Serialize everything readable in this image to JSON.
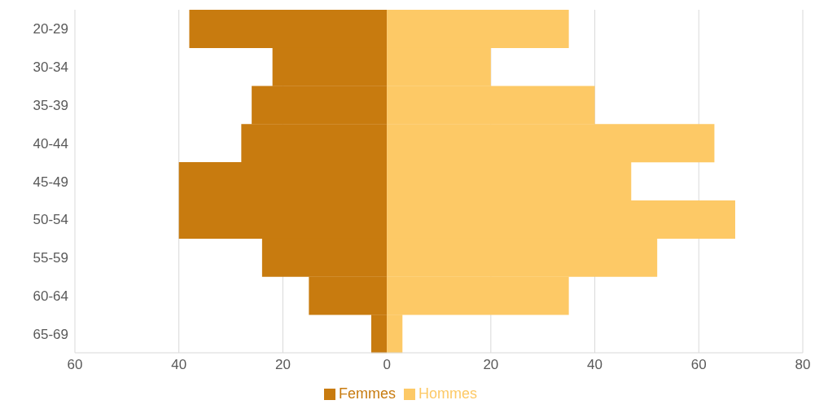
{
  "chart_data": {
    "type": "bar",
    "orientation": "horizontal",
    "stacked": true,
    "categories": [
      "20-29",
      "30-34",
      "35-39",
      "40-44",
      "45-49",
      "50-54",
      "55-59",
      "60-64",
      "65-69"
    ],
    "series": [
      {
        "name": "Femmes",
        "color": "#c87b0f",
        "values": [
          -38,
          -22,
          -26,
          -28,
          -40,
          -40,
          -24,
          -15,
          -3
        ]
      },
      {
        "name": "Hommes",
        "color": "#fdc966",
        "values": [
          35,
          20,
          40,
          63,
          47,
          67,
          52,
          35,
          3
        ]
      }
    ],
    "xlim": [
      -60,
      80
    ],
    "xticks": [
      {
        "value": -60,
        "label": "60"
      },
      {
        "value": -40,
        "label": "40"
      },
      {
        "value": -20,
        "label": "20"
      },
      0,
      20,
      40,
      60,
      80
    ],
    "grid": "x",
    "legend": "bottom"
  }
}
